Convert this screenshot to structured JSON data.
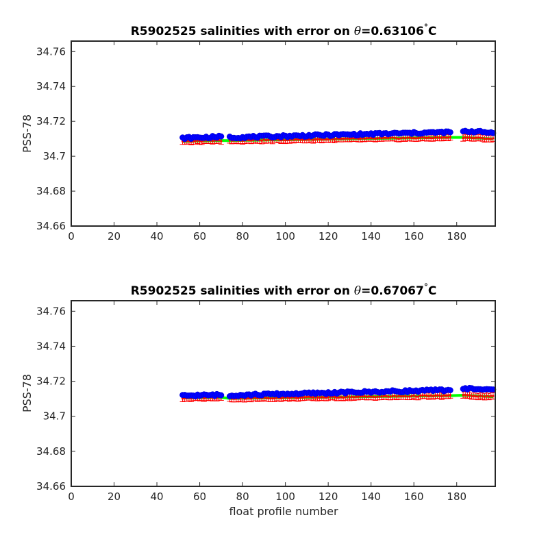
{
  "figure": {
    "xlabel": "float profile number"
  },
  "chart_data": [
    {
      "type": "scatter",
      "title_prefix": "R5902525 salinities with error on ",
      "theta_symbol": "θ",
      "title_value": "=0.63106",
      "degree_symbol": "°",
      "title_unit": "C",
      "ylabel": "PSS-78",
      "xlabel": "",
      "xlim": [
        0,
        198
      ],
      "ylim": [
        34.66,
        34.766
      ],
      "xticks": [
        "0",
        "20",
        "40",
        "60",
        "80",
        "100",
        "120",
        "140",
        "160",
        "180"
      ],
      "yticks": [
        "34.66",
        "34.68",
        "34.7",
        "34.72",
        "34.74",
        "34.76"
      ],
      "grid": false,
      "segments": [
        {
          "x_start": 52,
          "x_end": 70,
          "measured_start": 34.7104,
          "measured_end": 34.7112,
          "calibrated_start": 34.7085,
          "calibrated_end": 34.709
        },
        {
          "x_start": 74,
          "x_end": 177,
          "measured_start": 34.7108,
          "measured_end": 34.7138,
          "calibrated_start": 34.709,
          "calibrated_end": 34.7108
        },
        {
          "x_start": 183,
          "x_end": 197,
          "measured_start": 34.7145,
          "measured_end": 34.7135,
          "calibrated_start": 34.7108,
          "calibrated_end": 34.71
        }
      ],
      "error_half_width": 0.0018,
      "series": [
        {
          "role": "measured",
          "marker": "circle",
          "color": "#0000ff"
        },
        {
          "role": "calibrated",
          "marker": "errorbar",
          "color": "#ff0000"
        },
        {
          "role": "reference",
          "marker": "line",
          "color": "#00ff00"
        }
      ]
    },
    {
      "type": "scatter",
      "title_prefix": "R5902525 salinities with error on ",
      "theta_symbol": "θ",
      "title_value": "=0.67067",
      "degree_symbol": "°",
      "title_unit": "C",
      "ylabel": "PSS-78",
      "xlabel": "float profile number",
      "xlim": [
        0,
        198
      ],
      "ylim": [
        34.66,
        34.766
      ],
      "xticks": [
        "0",
        "20",
        "40",
        "60",
        "80",
        "100",
        "120",
        "140",
        "160",
        "180"
      ],
      "yticks": [
        "34.66",
        "34.68",
        "34.7",
        "34.72",
        "34.74",
        "34.76"
      ],
      "grid": false,
      "segments": [
        {
          "x_start": 52,
          "x_end": 70,
          "measured_start": 34.7118,
          "measured_end": 34.7122,
          "calibrated_start": 34.7105,
          "calibrated_end": 34.7108
        },
        {
          "x_start": 74,
          "x_end": 177,
          "measured_start": 34.712,
          "measured_end": 34.715,
          "calibrated_start": 34.7102,
          "calibrated_end": 34.7118
        },
        {
          "x_start": 183,
          "x_end": 197,
          "measured_start": 34.716,
          "measured_end": 34.715,
          "calibrated_start": 34.712,
          "calibrated_end": 34.7112
        }
      ],
      "error_half_width": 0.0018,
      "series": [
        {
          "role": "measured",
          "marker": "circle",
          "color": "#0000ff"
        },
        {
          "role": "calibrated",
          "marker": "errorbar",
          "color": "#ff0000"
        },
        {
          "role": "reference",
          "marker": "line",
          "color": "#00ff00"
        }
      ]
    }
  ]
}
